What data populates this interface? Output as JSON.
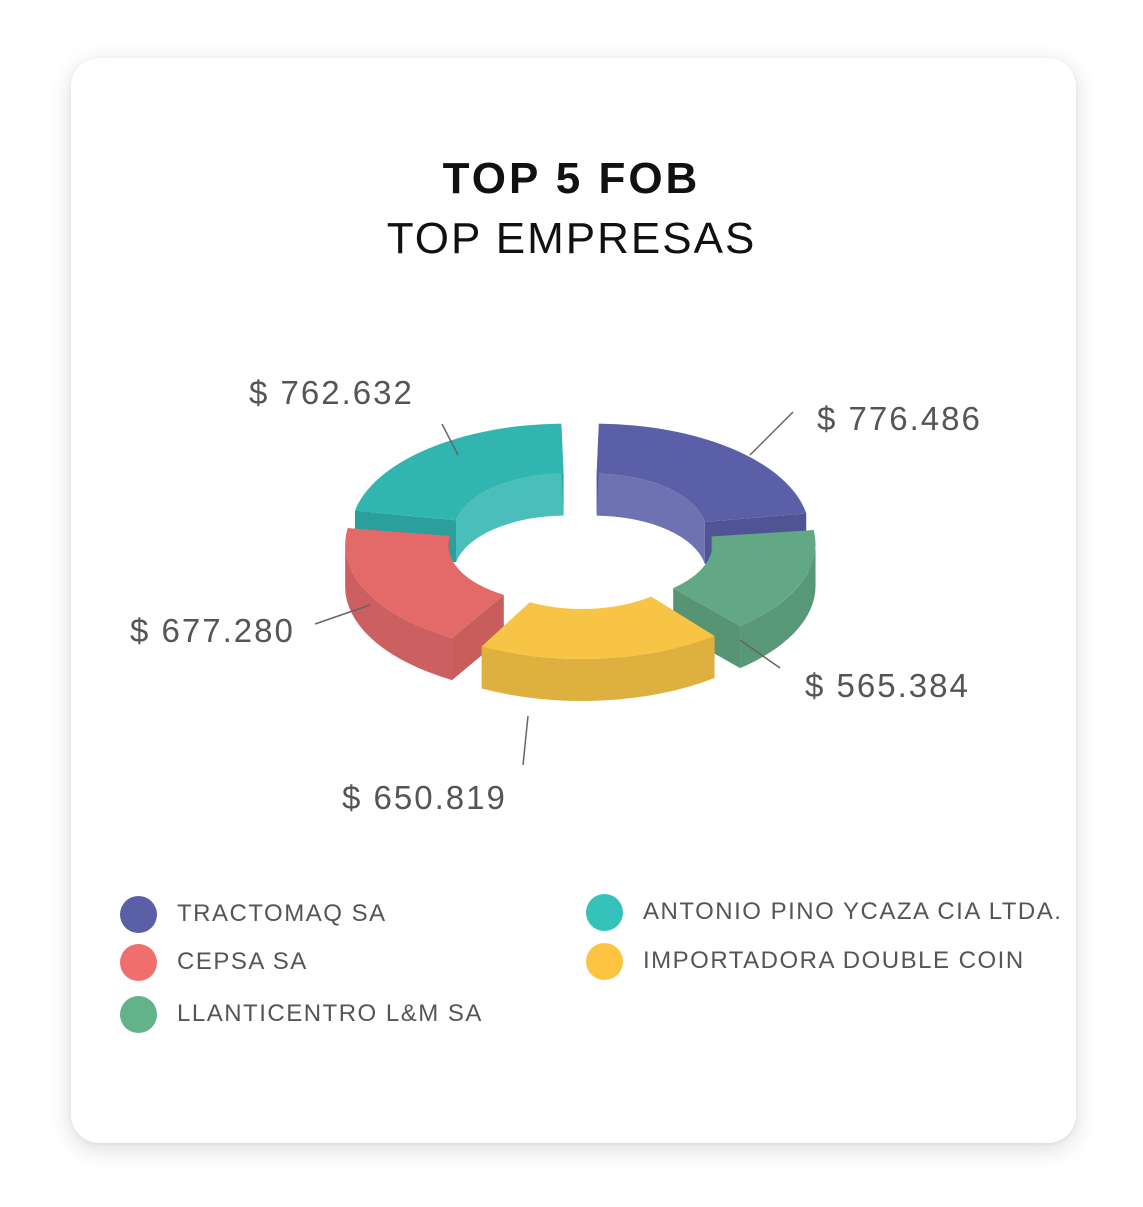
{
  "chart_data": {
    "type": "pie",
    "variant": "3d-donut-exploded",
    "title": "TOP 5 FOB",
    "subtitle": "TOP EMPRESAS",
    "series": [
      {
        "name": "TRACTOMAQ SA",
        "value": 776486,
        "value_label": "$ 776.486",
        "color": "#5b5fa8"
      },
      {
        "name": "LLANTICENTRO L&M SA",
        "value": 565384,
        "value_label": "$ 565.384",
        "color": "#62a884"
      },
      {
        "name": "IMPORTADORA DOUBLE COIN",
        "value": 650819,
        "value_label": "$ 650.819",
        "color": "#f7c446"
      },
      {
        "name": "CEPSA SA",
        "value": 677280,
        "value_label": "$ 677.280",
        "color": "#e36a69"
      },
      {
        "name": "ANTONIO PINO YCAZA CIA LTDA.",
        "value": 762632,
        "value_label": "$ 762.632",
        "color": "#31b5b0"
      }
    ],
    "legend": {
      "placement": "bottom",
      "items": [
        {
          "name": "TRACTOMAQ SA",
          "color": "#5b5fa8"
        },
        {
          "name": "CEPSA SA",
          "color": "#ef6e6e"
        },
        {
          "name": "LLANTICENTRO L&M SA",
          "color": "#62b38a"
        },
        {
          "name": "ANTONIO PINO YCAZA CIA LTDA.",
          "color": "#35c2bb"
        },
        {
          "name": "IMPORTADORA DOUBLE COIN",
          "color": "#fcc441"
        }
      ]
    }
  }
}
